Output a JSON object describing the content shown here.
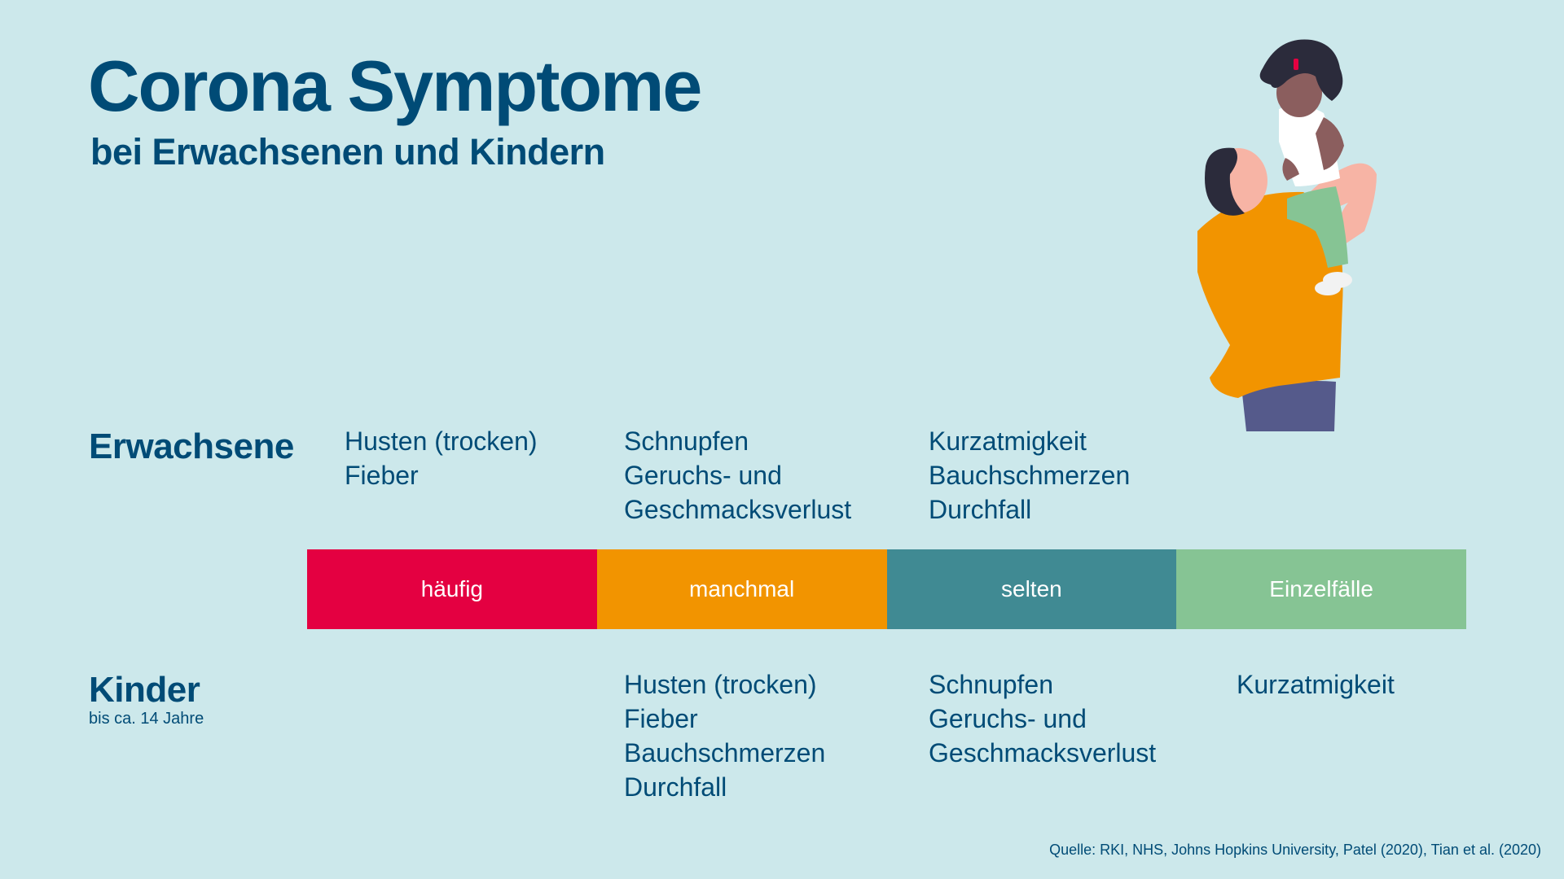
{
  "title": "Corona Symptome",
  "subtitle": "bei Erwachsenen und Kindern",
  "rows": {
    "adults": {
      "label": "Erwachsene"
    },
    "children": {
      "label": "Kinder",
      "note": "bis ca. 14 Jahre"
    }
  },
  "scale": [
    {
      "label": "häufig",
      "color": "#e40041"
    },
    {
      "label": "manchmal",
      "color": "#f29400"
    },
    {
      "label": "selten",
      "color": "#408a93"
    },
    {
      "label": "Einzelfälle",
      "color": "#86c494"
    }
  ],
  "adult_symptoms": [
    [
      "Husten (trocken)",
      "Fieber"
    ],
    [
      "Schnupfen",
      "Geruchs- und",
      "Geschmacksverlust"
    ],
    [
      "Kurzatmigkeit",
      "Bauchschmerzen",
      "Durchfall"
    ],
    []
  ],
  "child_symptoms": [
    [],
    [
      "Husten (trocken)",
      "Fieber",
      "Bauchschmerzen",
      "Durchfall"
    ],
    [
      "Schnupfen",
      "Geruchs- und",
      "Geschmacksverlust"
    ],
    [
      "Kurzatmigkeit"
    ]
  ],
  "source": "Quelle: RKI, NHS, Johns Hopkins University, Patel (2020), Tian et al. (2020)",
  "illustration": {
    "name": "parent-lifting-child-illustration"
  }
}
